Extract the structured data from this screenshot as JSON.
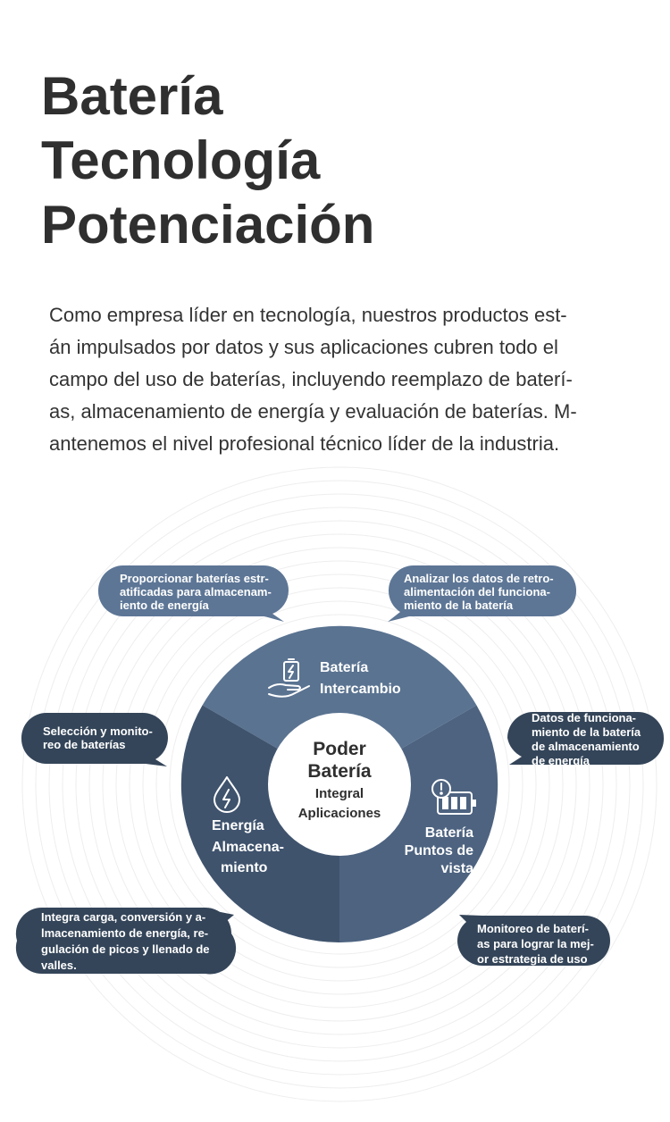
{
  "title": {
    "lines": [
      "Batería",
      "Tecnología",
      "Potenciación"
    ]
  },
  "description": {
    "lines": [
      "Como empresa líder en tecnología, nuestros productos est-",
      "án impulsados por datos y sus aplicaciones cubren todo el",
      "campo del uso de baterías, incluyendo reemplazo de baterí-",
      "as, almacenamiento de energía y evaluación de baterías. M-",
      "antenemos el nivel profesional técnico líder de la industria."
    ]
  },
  "center": {
    "line1": "Poder",
    "line2": "Batería",
    "line3": "Integral",
    "line4": "Aplicaciones"
  },
  "segments": {
    "swap": {
      "line1": "Batería",
      "line2": "Intercambio",
      "icon": "battery-hand-icon"
    },
    "storage": {
      "line1": "Energía",
      "line2": "Almacena-",
      "line3": "miento",
      "icon": "water-drop-bolt-icon"
    },
    "insights": {
      "line1": "Batería",
      "line2": "Puntos de",
      "line3": "vista",
      "icon": "battery-alert-icon"
    }
  },
  "bubbles": {
    "top_left": [
      "Proporcionar baterías estr-",
      "atificadas para almacenam-",
      "iento de energía"
    ],
    "top_right": [
      "Analizar los datos de retro-",
      "alimentación del funciona-",
      "miento de la batería"
    ],
    "mid_left": [
      "Selección y monito-",
      "reo de baterías"
    ],
    "mid_right": [
      "Datos de funciona-",
      "miento de la batería",
      "de almacenamiento",
      "de energía"
    ],
    "bottom_left": [
      "Integra carga, conversión y a-",
      "lmacenamiento de energía, re-",
      "gulación de picos y llenado de",
      "valles."
    ],
    "bottom_right": [
      "Monitoreo de baterí-",
      "as para lograr la mej-",
      "or estrategia de uso"
    ]
  },
  "colors": {
    "segment_top": "#5a7391",
    "segment_left": "#3f536d",
    "segment_right": "#4d6380",
    "bubble_light": "#5d7696",
    "bubble_dark": "#344559",
    "text_dark": "#2f2f2f"
  }
}
